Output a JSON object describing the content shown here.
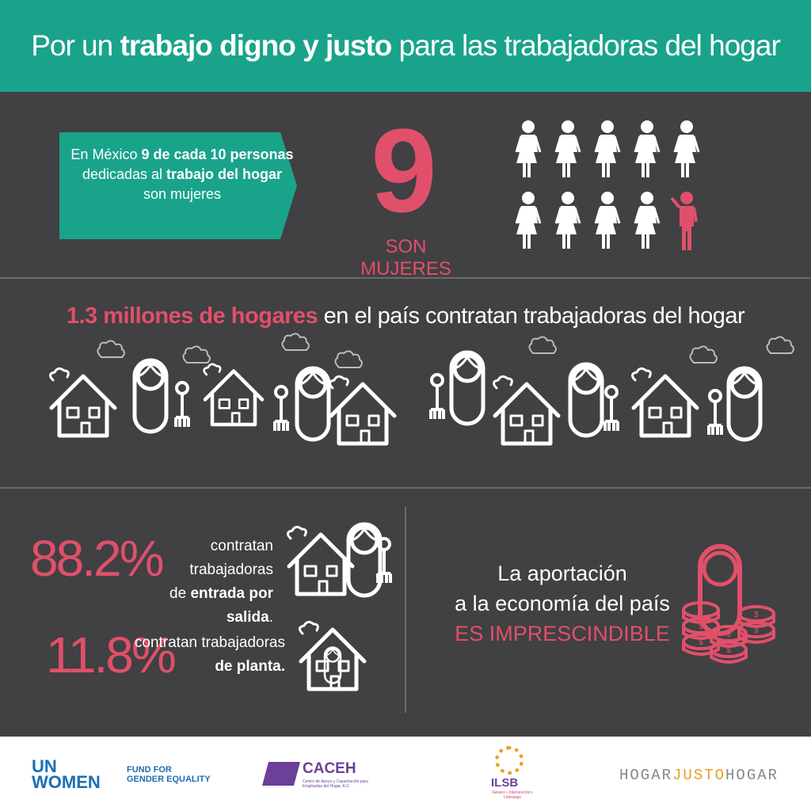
{
  "header": {
    "title": {
      "pre": "Por un ",
      "bold": "trabajo digno y justo",
      "post": " para las trabajadoras del hogar"
    }
  },
  "stat_women": {
    "callout": {
      "p1": "En México ",
      "b1": "9 de cada 10 personas",
      "p2": "dedicadas al ",
      "b2": "trabajo del hogar",
      "p3": "son mujeres"
    },
    "number": "9",
    "caption": "SON MUJERES"
  },
  "stat_homes": {
    "highlight": "1.3 millones de hogares",
    "rest": " en el país contratan trabajadoras del hogar"
  },
  "stat_types": {
    "items": [
      {
        "percent": "88.2%",
        "line1": "contratan trabajadoras",
        "line2_pre": "de ",
        "line2_bold": "entrada por salida",
        "line2_post": "."
      },
      {
        "percent": "11.8%",
        "line1": "contratan trabajadoras",
        "line2_bold": "de planta."
      }
    ]
  },
  "contribution": {
    "line1": "La aportación",
    "line2": "a la economía del país",
    "highlight": "ES IMPRESCINDIBLE"
  },
  "footer": {
    "unwomen": {
      "un": "UN",
      "women": "WOMEN",
      "fund": "FUND FOR",
      "fund2": "GENDER EQUALITY"
    },
    "caceh": {
      "name": "CACEH",
      "sub": "Centro de Apoyo y Capacitación para Empleadas del Hogar, A.C."
    },
    "ilsb": {
      "name": "ILSB",
      "sub": "Género • Intervención • Liderazgo"
    },
    "hjh": {
      "a": "HOGAR",
      "b": "JUSTO",
      "c": "HOGAR"
    }
  }
}
